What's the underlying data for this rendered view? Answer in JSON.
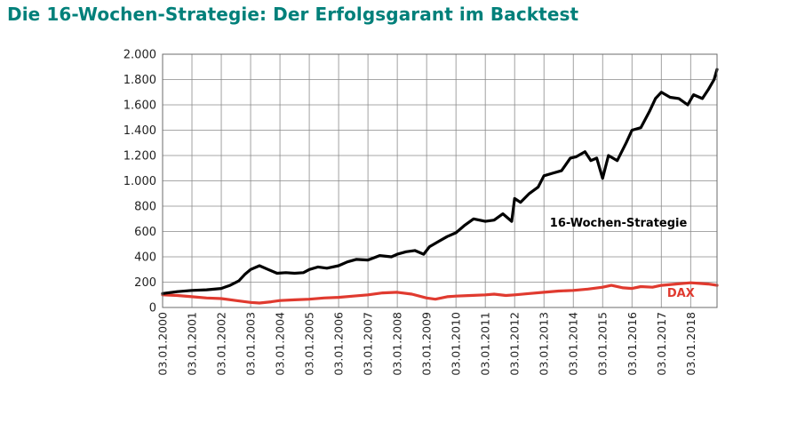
{
  "chart_data": {
    "type": "line",
    "title": "Die 16-Wochen-Strategie: Der Erfolgsgarant im Backtest",
    "xlabel": "",
    "ylabel": "",
    "ylim": [
      0,
      2000
    ],
    "yticks": [
      0,
      200,
      400,
      600,
      800,
      1000,
      1200,
      1400,
      1600,
      1800,
      2000
    ],
    "ytick_labels": [
      "0",
      "200",
      "400",
      "600",
      "800",
      "1.000",
      "1.200",
      "1.400",
      "1.600",
      "1.800",
      "2.000"
    ],
    "xlim": [
      2000.0,
      2018.9
    ],
    "xticks": [
      "03.01.2000",
      "03.01.2001",
      "03.01.2002",
      "03.01.2003",
      "03.01.2004",
      "03.01.2005",
      "03.01.2006",
      "03.01.2007",
      "03.01.2008",
      "03.01.2009",
      "03.01.2010",
      "03.01.2011",
      "03.01.2012",
      "03.01.2013",
      "03.01.2014",
      "03.01.2015",
      "03.01.2016",
      "03.01.2017",
      "03.01.2018"
    ],
    "grid": true,
    "series": [
      {
        "name": "16-Wochen-Strategie",
        "color": "#000000",
        "x": [
          2000.0,
          2000.5,
          2001.0,
          2001.5,
          2002.0,
          2002.3,
          2002.6,
          2002.8,
          2003.0,
          2003.3,
          2003.6,
          2003.9,
          2004.2,
          2004.5,
          2004.8,
          2005.0,
          2005.3,
          2005.6,
          2006.0,
          2006.3,
          2006.6,
          2007.0,
          2007.4,
          2007.8,
          2008.0,
          2008.3,
          2008.6,
          2008.9,
          2009.1,
          2009.4,
          2009.7,
          2010.0,
          2010.3,
          2010.6,
          2011.0,
          2011.3,
          2011.6,
          2011.9,
          2012.0,
          2012.2,
          2012.5,
          2012.8,
          2013.0,
          2013.3,
          2013.6,
          2013.9,
          2014.1,
          2014.4,
          2014.6,
          2014.8,
          2015.0,
          2015.2,
          2015.5,
          2015.8,
          2016.0,
          2016.3,
          2016.6,
          2016.8,
          2017.0,
          2017.3,
          2017.6,
          2017.9,
          2018.1,
          2018.4,
          2018.6,
          2018.8,
          2018.9
        ],
        "values": [
          110,
          125,
          135,
          140,
          150,
          175,
          210,
          260,
          300,
          330,
          300,
          270,
          275,
          270,
          275,
          300,
          320,
          310,
          330,
          360,
          380,
          375,
          410,
          400,
          420,
          440,
          450,
          420,
          480,
          520,
          560,
          590,
          650,
          700,
          680,
          690,
          740,
          680,
          860,
          830,
          900,
          950,
          1040,
          1060,
          1080,
          1180,
          1190,
          1230,
          1160,
          1180,
          1020,
          1200,
          1160,
          1300,
          1400,
          1420,
          1550,
          1650,
          1700,
          1660,
          1650,
          1600,
          1680,
          1650,
          1720,
          1800,
          1880
        ]
      },
      {
        "name": "DAX",
        "color": "#e03a2f",
        "x": [
          2000.0,
          2000.5,
          2001.0,
          2001.5,
          2002.0,
          2002.5,
          2003.0,
          2003.3,
          2003.7,
          2004.0,
          2004.5,
          2005.0,
          2005.5,
          2006.0,
          2006.5,
          2007.0,
          2007.5,
          2008.0,
          2008.5,
          2009.0,
          2009.3,
          2009.7,
          2010.0,
          2010.5,
          2011.0,
          2011.3,
          2011.7,
          2012.0,
          2012.5,
          2013.0,
          2013.5,
          2014.0,
          2014.5,
          2015.0,
          2015.3,
          2015.7,
          2016.0,
          2016.3,
          2016.7,
          2017.0,
          2017.5,
          2018.0,
          2018.3,
          2018.6,
          2018.9
        ],
        "values": [
          100,
          95,
          85,
          75,
          70,
          55,
          40,
          35,
          45,
          55,
          60,
          65,
          75,
          80,
          90,
          100,
          115,
          120,
          105,
          75,
          65,
          85,
          90,
          95,
          100,
          105,
          95,
          100,
          110,
          120,
          130,
          135,
          145,
          160,
          175,
          155,
          150,
          165,
          160,
          175,
          185,
          195,
          190,
          185,
          175
        ]
      }
    ],
    "annotations": [
      {
        "text": "16-Wochen-Strategie",
        "color": "#000000",
        "x": 2013.2,
        "y": 640
      },
      {
        "text": "DAX",
        "color": "#e03a2f",
        "x": 2017.2,
        "y": 85
      }
    ]
  }
}
